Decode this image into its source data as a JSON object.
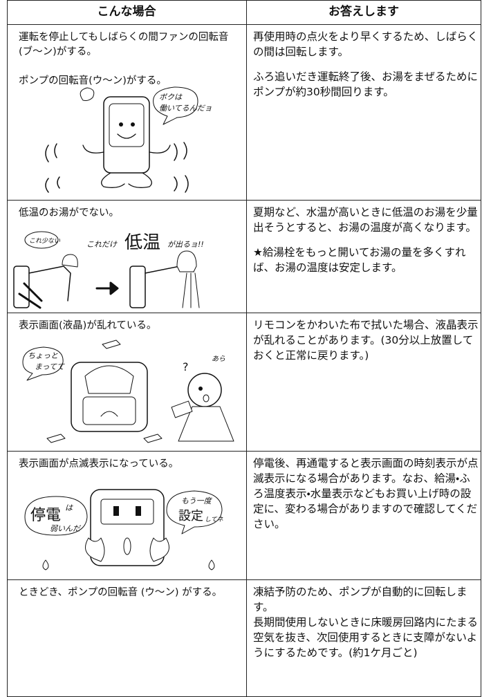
{
  "table": {
    "headers": [
      "こんな場合",
      "お答えします"
    ],
    "rows": [
      {
        "situation": [
          "運転を停止してもしばらくの間ファンの回転音(ブ～ン)がする。",
          "ポンプの回転音(ウ～ン)がする。"
        ],
        "answer": [
          "再使用時の点火をより早くするため、しばらくの間は回転します。",
          "ふろ追いだき運転終了後、お湯をまぜるためにポンプが約30秒間回ります。"
        ],
        "illustration": [
          "ボクは",
          "働いてるんだョ"
        ]
      },
      {
        "situation": [
          "低温のお湯がでない。"
        ],
        "answer": [
          "夏期など、水温が高いときに低温のお湯を少量出そうとすると、お湯の温度が高くなります。",
          "★給湯栓をもっと開いてお湯の量を多くすれば、お湯の温度は安定します。"
        ],
        "illustration": [
          "これ少ない",
          "これだけ",
          "低温",
          "が出るョ!!"
        ]
      },
      {
        "situation": [
          "表示画面(液晶)が乱れている。"
        ],
        "answer": [
          "リモコンをかわいた布で拭いた場合、液晶表示が乱れることがあります。(30分以上放置しておくと正常に戻ります。)"
        ],
        "illustration": [
          "ちょっと",
          "まってて",
          "あら"
        ]
      },
      {
        "situation": [
          "表示画面が点滅表示になっている。"
        ],
        "answer": [
          "停電後、再通電すると表示画面の時刻表示が点滅表示になる場合があります。なお、給湯・ふろ温度表示・水量表示などもお買い上げ時の設定に、変わる場合がありますので確認してください。"
        ],
        "illustration": [
          "停電",
          "は",
          "弱いんだ",
          "もう一度",
          "設定",
          "してネ"
        ]
      },
      {
        "situation": [
          "ときどき、ポンプの回転音 (ウ～ン) がする。"
        ],
        "answer": [
          "凍結予防のため、ポンプが自動的に回転します。",
          "長期間使用しないときに床暖房回路内にたまる空気を抜き、次回使用するときに支障がないようにするためです。(約1ケ月ごと)"
        ],
        "illustration": []
      }
    ]
  }
}
